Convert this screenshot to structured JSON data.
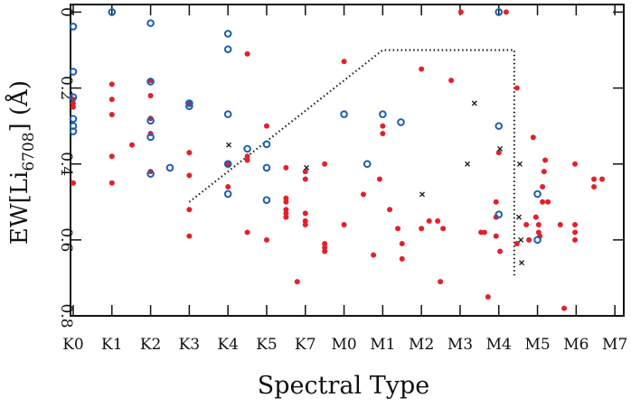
{
  "chart_data": {
    "type": "scatter",
    "xlabel": "Spectral Type",
    "ylabel_parts": [
      "EW[Li",
      "6708",
      "] (Å)"
    ],
    "xlim": [
      -0.07,
      14.23
    ],
    "xticks": [
      {
        "value": 0,
        "label": "K0"
      },
      {
        "value": 1,
        "label": "K1"
      },
      {
        "value": 2,
        "label": "K2"
      },
      {
        "value": 3,
        "label": "K3"
      },
      {
        "value": 4,
        "label": "K4"
      },
      {
        "value": 5,
        "label": "K5"
      },
      {
        "value": 6,
        "label": "K7"
      },
      {
        "value": 7,
        "label": "M0"
      },
      {
        "value": 8,
        "label": "M1"
      },
      {
        "value": 9,
        "label": "M2"
      },
      {
        "value": 10,
        "label": "M3"
      },
      {
        "value": 11,
        "label": "M4"
      },
      {
        "value": 12,
        "label": "M5"
      },
      {
        "value": 13,
        "label": "M6"
      },
      {
        "value": 14,
        "label": "M7"
      }
    ],
    "ylim": [
      -0.02,
      0.8
    ],
    "y_inverted": true,
    "yticks": [
      0,
      0.2,
      0.4,
      0.6,
      0.8
    ],
    "series": [
      {
        "color": "#e3202b",
        "marker": "filled",
        "x": [
          0,
          0,
          0,
          0,
          1,
          1,
          1,
          1,
          1,
          1.52,
          2,
          2,
          2,
          2,
          2,
          3,
          3,
          3,
          3,
          3,
          4,
          4,
          4.5,
          4.5,
          4.5,
          4.5,
          5,
          5,
          5.5,
          5.5,
          5.5,
          5.5,
          5.5,
          5.5,
          6,
          6,
          6,
          6,
          6,
          5.79,
          6.5,
          6.5,
          6.5,
          6.5,
          7,
          7,
          7.5,
          7.76,
          7.92,
          8,
          8,
          8.18,
          8.39,
          8.5,
          8.5,
          9,
          9,
          9.2,
          9.42,
          9.56,
          9.49,
          9.77,
          10.02,
          10.54,
          10.63,
          10.72,
          10.93,
          10.93,
          10.93,
          11,
          11.03,
          11.19,
          11.47,
          11.47,
          11.71,
          11.78,
          11.89,
          11.96,
          12.03,
          12.03,
          12.06,
          12.13,
          12.13,
          12.17,
          12.2,
          12.27,
          12.59,
          12.69,
          12.97,
          12.97,
          12.97,
          12.97,
          13.46,
          13.46,
          13.67
        ],
        "y": [
          0.23,
          0.24,
          0.25,
          0.45,
          0.19,
          0.23,
          0.27,
          0.38,
          0.45,
          0.35,
          0.18,
          0.22,
          0.28,
          0.32,
          0.42,
          0.24,
          0.37,
          0.43,
          0.52,
          0.59,
          0.4,
          0.46,
          0.11,
          0.38,
          0.39,
          0.58,
          0.3,
          0.6,
          0.41,
          0.49,
          0.5,
          0.52,
          0.53,
          0.54,
          0.42,
          0.44,
          0.53,
          0.55,
          0.56,
          0.71,
          0.4,
          0.61,
          0.62,
          0.63,
          0.13,
          0.56,
          0.48,
          0.64,
          0.44,
          0.3,
          0.32,
          0.52,
          0.57,
          0.61,
          0.65,
          0.15,
          0.57,
          0.55,
          0.55,
          0.57,
          0.71,
          0.18,
          0,
          0.58,
          0.58,
          0.75,
          0.5,
          0.54,
          0.59,
          0.37,
          0.63,
          0,
          0.2,
          0.61,
          0.56,
          0.6,
          0.33,
          0.54,
          0.56,
          0.58,
          0.59,
          0.46,
          0.5,
          0.42,
          0.39,
          0.5,
          0.56,
          0.78,
          0.4,
          0.56,
          0.58,
          0.6,
          0.44,
          0.46,
          0.44
        ]
      },
      {
        "color": "#1f5fae",
        "marker": "open",
        "x": [
          0,
          0,
          0,
          0,
          0,
          0,
          1,
          2,
          2,
          2,
          2,
          2,
          2.5,
          3,
          3,
          4,
          4,
          4,
          4,
          4,
          4.5,
          5,
          5,
          5,
          7,
          7.6,
          8,
          8.47,
          11,
          11,
          11,
          12,
          12
        ],
        "y": [
          0.038,
          0.157,
          0.224,
          0.281,
          0.3,
          0.314,
          0,
          0.029,
          0.183,
          0.286,
          0.329,
          0.426,
          0.41,
          0.24,
          0.248,
          0.057,
          0.098,
          0.269,
          0.4,
          0.479,
          0.36,
          0.348,
          0.41,
          0.495,
          0.269,
          0.4,
          0.269,
          0.29,
          0,
          0.3,
          0.533,
          0.479,
          0.6
        ]
      },
      {
        "color": "#222222",
        "marker": "cross",
        "x": [
          4.02,
          6.03,
          9.02,
          10.19,
          10.37,
          11.03,
          11.54,
          11.52,
          11.57,
          11.59
        ],
        "y": [
          0.35,
          0.41,
          0.48,
          0.4,
          0.24,
          0.36,
          0.4,
          0.54,
          0.6,
          0.66
        ]
      }
    ],
    "lines": [
      {
        "style": "dotted",
        "color": "#222222",
        "x": [
          3,
          8,
          11.4,
          11.4
        ],
        "y": [
          0.5,
          0.1,
          0.1,
          0.7
        ]
      }
    ]
  }
}
